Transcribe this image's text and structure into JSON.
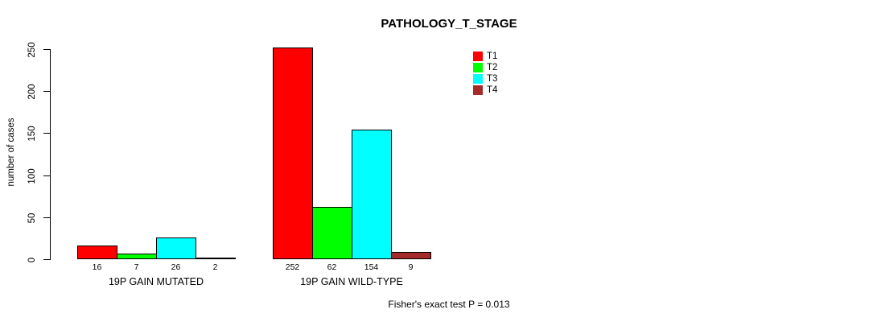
{
  "chart_data": {
    "type": "bar",
    "title": "PATHOLOGY_T_STAGE",
    "ylabel": "number of cases",
    "ylim": [
      0,
      250
    ],
    "yticks": [
      0,
      50,
      100,
      150,
      200,
      250
    ],
    "grid": false,
    "legend_position": "top-right",
    "categories": [
      "19P GAIN MUTATED",
      "19P GAIN WILD-TYPE"
    ],
    "series": [
      {
        "name": "T1",
        "color": "#ff0000",
        "values": [
          16,
          252
        ]
      },
      {
        "name": "T2",
        "color": "#00ff00",
        "values": [
          7,
          62
        ]
      },
      {
        "name": "T3",
        "color": "#00ffff",
        "values": [
          26,
          154
        ]
      },
      {
        "name": "T4",
        "color": "#a52a2a",
        "values": [
          2,
          9
        ]
      }
    ],
    "annotation": "Fisher's exact test P = 0.013"
  }
}
